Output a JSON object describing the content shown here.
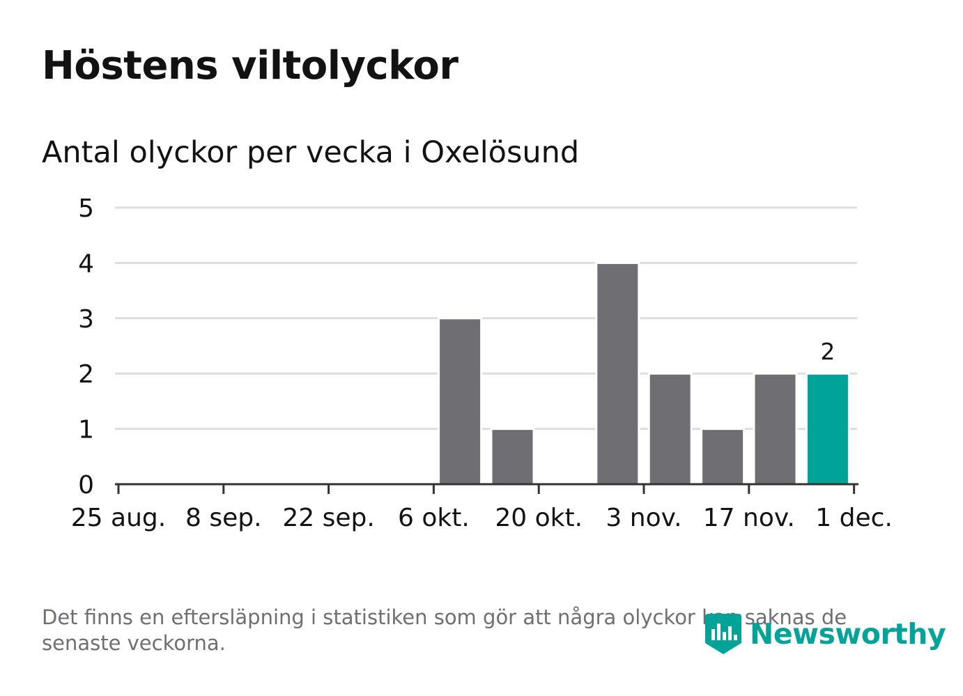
{
  "title": "Höstens viltolyckor",
  "subtitle": "Antal olyckor per vecka i Oxelösund",
  "footnote": "Det finns en eftersläpning i statistiken som gör att några olyckor kan saknas de senaste veckorna.",
  "logo": {
    "text": "Newsworthy",
    "icon": "newsworthy-logo-icon"
  },
  "colors": {
    "bar": "#6f6e73",
    "highlight": "#00a398",
    "grid": "#dddddd",
    "axis": "#333333",
    "text": "#121212"
  },
  "chart_data": {
    "type": "bar",
    "title": "Antal olyckor per vecka i Oxelösund",
    "xlabel": "",
    "ylabel": "",
    "ylim": [
      0,
      5
    ],
    "y_ticks": [
      "0",
      "1",
      "2",
      "3",
      "4",
      "5"
    ],
    "x_ticks": [
      "25 aug.",
      "8 sep.",
      "22 sep.",
      "6 okt.",
      "20 okt.",
      "3 nov.",
      "17 nov.",
      "1 dec."
    ],
    "categories": [
      "25 aug.",
      "1 sep.",
      "8 sep.",
      "15 sep.",
      "22 sep.",
      "29 sep.",
      "6 okt.",
      "13 okt.",
      "20 okt.",
      "27 okt.",
      "3 nov.",
      "10 nov.",
      "17 nov.",
      "24 nov."
    ],
    "values": [
      0,
      0,
      0,
      0,
      0,
      0,
      3,
      1,
      0,
      4,
      2,
      1,
      2,
      2
    ],
    "highlight_index": 13,
    "highlight_label": "2",
    "grid": true
  }
}
